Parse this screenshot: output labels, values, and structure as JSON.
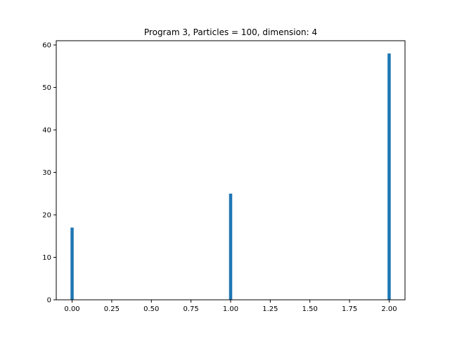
{
  "chart_data": {
    "type": "bar",
    "title": "Program 3, Particles = 100, dimension: 4",
    "xlabel": "",
    "ylabel": "",
    "x": [
      0,
      1,
      2
    ],
    "values": [
      17,
      25,
      58
    ],
    "xlim": [
      -0.1,
      2.1
    ],
    "ylim": [
      0,
      61
    ],
    "bar_width": 0.02,
    "xticks": [
      0,
      0.25,
      0.5,
      0.75,
      1,
      1.25,
      1.5,
      1.75,
      2
    ],
    "xtick_labels": [
      "0.00",
      "0.25",
      "0.50",
      "0.75",
      "1.00",
      "1.25",
      "1.50",
      "1.75",
      "2.00"
    ],
    "yticks": [
      0,
      10,
      20,
      30,
      40,
      50,
      60
    ],
    "ytick_labels": [
      "0",
      "10",
      "20",
      "30",
      "40",
      "50",
      "60"
    ],
    "grid": false,
    "legend": false,
    "bar_color": "#1f77b4"
  }
}
